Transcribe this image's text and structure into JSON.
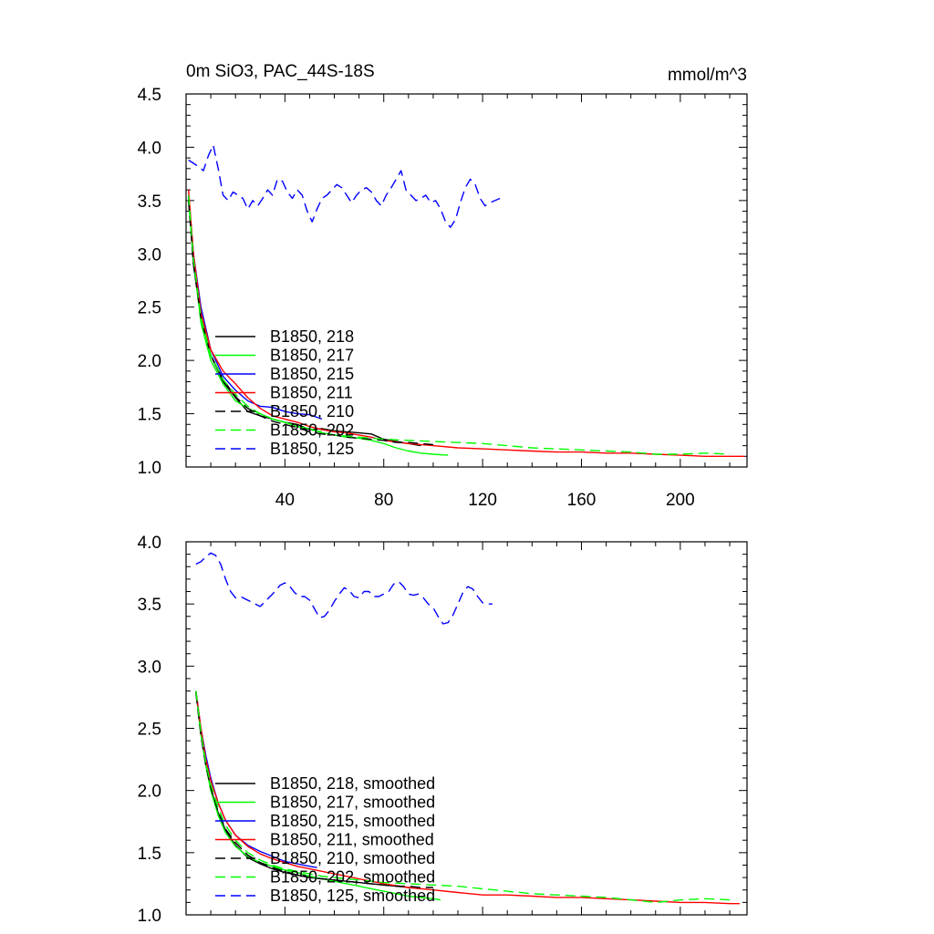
{
  "figure": {
    "title": "0m SiO3, PAC_44S-18S",
    "units": "mmol/m^3"
  },
  "chart_data": [
    {
      "type": "line",
      "title": "0m SiO3, PAC_44S-18S",
      "units": "mmol/m^3",
      "xlabel": "",
      "ylabel": "",
      "xlim": [
        0,
        227
      ],
      "ylim": [
        1.0,
        4.5
      ],
      "xticks": [
        40,
        80,
        120,
        160,
        200
      ],
      "xtick_labels": [
        "40",
        "80",
        "120",
        "160",
        "200"
      ],
      "yticks": [
        1.0,
        1.5,
        2.0,
        2.5,
        3.0,
        3.5,
        4.0,
        4.5
      ],
      "ytick_labels": [
        "1.0",
        "1.5",
        "2.0",
        "2.5",
        "3.0",
        "3.5",
        "4.0",
        "4.5"
      ],
      "legend_position": "lower-left",
      "series": [
        {
          "name": "B1850, 218",
          "color": "#000000",
          "dash": "solid",
          "x": [
            1,
            3,
            6,
            10,
            15,
            20,
            25,
            30,
            35,
            40,
            45,
            50,
            55,
            60,
            65,
            70,
            75,
            80,
            85,
            90,
            95
          ],
          "y": [
            3.55,
            2.9,
            2.4,
            2.05,
            1.8,
            1.65,
            1.52,
            1.48,
            1.45,
            1.42,
            1.4,
            1.35,
            1.36,
            1.34,
            1.33,
            1.32,
            1.31,
            1.26,
            1.24,
            1.22,
            1.2
          ]
        },
        {
          "name": "B1850, 217",
          "color": "#00ff00",
          "dash": "solid",
          "x": [
            1,
            3,
            6,
            10,
            15,
            20,
            25,
            30,
            35,
            40,
            45,
            50,
            55,
            60,
            65,
            70,
            75,
            80,
            85,
            90,
            95,
            100,
            106
          ],
          "y": [
            3.5,
            2.95,
            2.35,
            2.0,
            1.78,
            1.62,
            1.55,
            1.5,
            1.45,
            1.42,
            1.38,
            1.36,
            1.32,
            1.3,
            1.28,
            1.27,
            1.25,
            1.22,
            1.18,
            1.15,
            1.13,
            1.12,
            1.11
          ]
        },
        {
          "name": "B1850, 215",
          "color": "#0000ff",
          "dash": "solid",
          "x": [
            1,
            3,
            6,
            10,
            15,
            20,
            25,
            30,
            35,
            40,
            45,
            50,
            55
          ],
          "y": [
            3.55,
            3.0,
            2.5,
            2.1,
            1.85,
            1.72,
            1.62,
            1.57,
            1.56,
            1.52,
            1.5,
            1.49,
            1.45
          ]
        },
        {
          "name": "B1850, 211",
          "color": "#ff0000",
          "dash": "solid",
          "x": [
            1,
            3,
            6,
            10,
            15,
            20,
            25,
            30,
            35,
            40,
            45,
            50,
            55,
            60,
            65,
            70,
            75,
            80,
            90,
            100,
            110,
            120,
            130,
            140,
            150,
            160,
            170,
            180,
            190,
            200,
            210,
            220,
            226
          ],
          "y": [
            3.6,
            3.0,
            2.45,
            2.1,
            1.9,
            1.78,
            1.65,
            1.55,
            1.48,
            1.45,
            1.42,
            1.38,
            1.35,
            1.33,
            1.32,
            1.3,
            1.28,
            1.25,
            1.22,
            1.2,
            1.18,
            1.17,
            1.16,
            1.15,
            1.14,
            1.14,
            1.13,
            1.13,
            1.12,
            1.11,
            1.1,
            1.1,
            1.1
          ]
        },
        {
          "name": "B1850, 210",
          "color": "#000000",
          "dash": "dashed",
          "x": [
            1,
            3,
            6,
            10,
            15,
            20,
            25,
            30,
            35,
            40,
            45,
            50,
            55,
            60,
            65,
            70,
            75,
            80,
            85,
            90,
            95,
            100
          ],
          "y": [
            3.5,
            2.9,
            2.4,
            2.05,
            1.82,
            1.66,
            1.55,
            1.48,
            1.43,
            1.4,
            1.37,
            1.33,
            1.31,
            1.3,
            1.28,
            1.27,
            1.26,
            1.25,
            1.23,
            1.23,
            1.22,
            1.21
          ]
        },
        {
          "name": "B1850, 202",
          "color": "#00ff00",
          "dash": "dashed",
          "x": [
            1,
            3,
            6,
            10,
            15,
            20,
            25,
            30,
            35,
            40,
            45,
            50,
            55,
            60,
            65,
            70,
            75,
            80,
            90,
            100,
            110,
            120,
            130,
            140,
            150,
            160,
            170,
            180,
            190,
            200,
            210,
            220
          ],
          "y": [
            3.55,
            2.95,
            2.4,
            2.05,
            1.82,
            1.68,
            1.57,
            1.5,
            1.45,
            1.42,
            1.38,
            1.35,
            1.33,
            1.3,
            1.29,
            1.28,
            1.27,
            1.26,
            1.25,
            1.24,
            1.23,
            1.22,
            1.2,
            1.18,
            1.17,
            1.16,
            1.15,
            1.14,
            1.12,
            1.12,
            1.13,
            1.12
          ]
        },
        {
          "name": "B1850, 125",
          "color": "#0000ff",
          "dash": "dashed",
          "x": [
            1,
            3,
            5,
            7,
            9,
            11,
            13,
            15,
            17,
            19,
            21,
            23,
            25,
            27,
            29,
            31,
            33,
            35,
            37,
            39,
            41,
            43,
            45,
            47,
            49,
            51,
            53,
            55,
            57,
            59,
            61,
            63,
            65,
            67,
            69,
            71,
            73,
            75,
            77,
            79,
            81,
            83,
            85,
            87,
            89,
            91,
            93,
            95,
            97,
            99,
            101,
            103,
            105,
            107,
            109,
            111,
            113,
            115,
            117,
            119,
            121,
            123,
            125,
            127
          ],
          "y": [
            3.88,
            3.85,
            3.82,
            3.78,
            3.92,
            4.02,
            3.8,
            3.55,
            3.5,
            3.58,
            3.55,
            3.52,
            3.42,
            3.5,
            3.45,
            3.52,
            3.6,
            3.55,
            3.7,
            3.68,
            3.58,
            3.52,
            3.6,
            3.55,
            3.4,
            3.3,
            3.42,
            3.52,
            3.55,
            3.6,
            3.65,
            3.62,
            3.55,
            3.48,
            3.55,
            3.6,
            3.62,
            3.58,
            3.5,
            3.45,
            3.55,
            3.62,
            3.7,
            3.78,
            3.6,
            3.55,
            3.5,
            3.52,
            3.55,
            3.48,
            3.5,
            3.42,
            3.3,
            3.25,
            3.32,
            3.48,
            3.62,
            3.7,
            3.65,
            3.52,
            3.45,
            3.48,
            3.5,
            3.52
          ]
        }
      ]
    },
    {
      "type": "line",
      "title": "",
      "xlabel": "",
      "ylabel": "",
      "xlim": [
        0,
        227
      ],
      "ylim": [
        1.0,
        4.0
      ],
      "xticks": [
        40,
        80,
        120,
        160,
        200
      ],
      "xtick_labels": [],
      "yticks": [
        1.0,
        1.5,
        2.0,
        2.5,
        3.0,
        3.5,
        4.0
      ],
      "ytick_labels": [
        "1.0",
        "1.5",
        "2.0",
        "2.5",
        "3.0",
        "3.5",
        "4.0"
      ],
      "legend_position": "lower-left",
      "series": [
        {
          "name": "B1850, 218, smoothed",
          "color": "#000000",
          "dash": "solid",
          "x": [
            4,
            6,
            8,
            10,
            13,
            16,
            20,
            25,
            30,
            35,
            40,
            45,
            50,
            55,
            60,
            65,
            70,
            75,
            80,
            85,
            90,
            95
          ],
          "y": [
            2.8,
            2.45,
            2.2,
            2.02,
            1.82,
            1.68,
            1.56,
            1.46,
            1.41,
            1.37,
            1.34,
            1.32,
            1.3,
            1.29,
            1.28,
            1.27,
            1.26,
            1.25,
            1.24,
            1.23,
            1.22,
            1.21
          ]
        },
        {
          "name": "B1850, 217, smoothed",
          "color": "#00ff00",
          "dash": "solid",
          "x": [
            4,
            6,
            8,
            10,
            13,
            16,
            20,
            25,
            30,
            35,
            40,
            45,
            50,
            55,
            60,
            65,
            70,
            75,
            80,
            85,
            90,
            95,
            100,
            103
          ],
          "y": [
            2.8,
            2.45,
            2.2,
            2.0,
            1.8,
            1.66,
            1.55,
            1.47,
            1.42,
            1.39,
            1.36,
            1.34,
            1.31,
            1.29,
            1.27,
            1.25,
            1.23,
            1.21,
            1.19,
            1.17,
            1.15,
            1.14,
            1.13,
            1.12
          ]
        },
        {
          "name": "B1850, 215, smoothed",
          "color": "#0000ff",
          "dash": "solid",
          "x": [
            4,
            6,
            8,
            10,
            13,
            16,
            20,
            25,
            30,
            35,
            40,
            45,
            50,
            53
          ],
          "y": [
            2.8,
            2.5,
            2.28,
            2.1,
            1.9,
            1.76,
            1.64,
            1.56,
            1.51,
            1.47,
            1.43,
            1.41,
            1.39,
            1.38
          ]
        },
        {
          "name": "B1850, 211, smoothed",
          "color": "#ff0000",
          "dash": "solid",
          "x": [
            4,
            6,
            8,
            10,
            13,
            16,
            20,
            25,
            30,
            35,
            40,
            45,
            50,
            55,
            60,
            65,
            70,
            75,
            80,
            90,
            100,
            110,
            120,
            130,
            140,
            150,
            160,
            170,
            180,
            190,
            200,
            210,
            220,
            224
          ],
          "y": [
            2.8,
            2.5,
            2.25,
            2.08,
            1.9,
            1.76,
            1.64,
            1.55,
            1.49,
            1.45,
            1.42,
            1.39,
            1.37,
            1.35,
            1.33,
            1.31,
            1.29,
            1.27,
            1.25,
            1.22,
            1.2,
            1.18,
            1.16,
            1.16,
            1.15,
            1.14,
            1.14,
            1.13,
            1.12,
            1.11,
            1.1,
            1.1,
            1.09,
            1.09
          ]
        },
        {
          "name": "B1850, 210, smoothed",
          "color": "#000000",
          "dash": "dashed",
          "x": [
            4,
            6,
            8,
            10,
            13,
            16,
            20,
            25,
            30,
            35,
            40,
            45,
            50,
            55,
            60,
            65,
            70,
            75,
            80,
            85,
            90,
            95,
            100
          ],
          "y": [
            2.78,
            2.44,
            2.2,
            2.02,
            1.83,
            1.69,
            1.58,
            1.48,
            1.42,
            1.38,
            1.35,
            1.32,
            1.3,
            1.29,
            1.28,
            1.27,
            1.26,
            1.25,
            1.24,
            1.23,
            1.23,
            1.22,
            1.22
          ]
        },
        {
          "name": "B1850, 202, smoothed",
          "color": "#00ff00",
          "dash": "dashed",
          "x": [
            4,
            6,
            8,
            10,
            13,
            16,
            20,
            25,
            30,
            35,
            40,
            45,
            50,
            55,
            60,
            65,
            70,
            75,
            80,
            90,
            100,
            110,
            120,
            130,
            140,
            150,
            160,
            170,
            180,
            190,
            200,
            210,
            220
          ],
          "y": [
            2.8,
            2.47,
            2.22,
            2.05,
            1.86,
            1.72,
            1.6,
            1.5,
            1.44,
            1.4,
            1.37,
            1.35,
            1.33,
            1.31,
            1.3,
            1.29,
            1.28,
            1.27,
            1.26,
            1.25,
            1.24,
            1.23,
            1.21,
            1.19,
            1.17,
            1.16,
            1.15,
            1.14,
            1.12,
            1.1,
            1.12,
            1.13,
            1.12
          ]
        },
        {
          "name": "B1850, 125, smoothed",
          "color": "#0000ff",
          "dash": "dashed",
          "x": [
            4,
            6,
            8,
            10,
            12,
            14,
            16,
            18,
            20,
            22,
            24,
            26,
            28,
            30,
            32,
            34,
            36,
            38,
            40,
            42,
            44,
            46,
            48,
            50,
            52,
            54,
            56,
            58,
            60,
            62,
            64,
            66,
            68,
            70,
            72,
            74,
            76,
            78,
            80,
            82,
            84,
            86,
            88,
            90,
            92,
            94,
            96,
            98,
            100,
            102,
            104,
            106,
            108,
            110,
            112,
            114,
            116,
            118,
            120,
            122,
            124
          ],
          "y": [
            3.82,
            3.84,
            3.88,
            3.91,
            3.89,
            3.82,
            3.7,
            3.6,
            3.55,
            3.56,
            3.54,
            3.52,
            3.5,
            3.48,
            3.52,
            3.56,
            3.6,
            3.65,
            3.67,
            3.64,
            3.59,
            3.56,
            3.56,
            3.53,
            3.46,
            3.39,
            3.4,
            3.45,
            3.52,
            3.58,
            3.63,
            3.61,
            3.56,
            3.55,
            3.6,
            3.6,
            3.56,
            3.56,
            3.58,
            3.6,
            3.66,
            3.68,
            3.64,
            3.58,
            3.57,
            3.58,
            3.55,
            3.5,
            3.47,
            3.4,
            3.34,
            3.35,
            3.41,
            3.5,
            3.59,
            3.64,
            3.62,
            3.56,
            3.51,
            3.5,
            3.5
          ]
        }
      ]
    }
  ]
}
